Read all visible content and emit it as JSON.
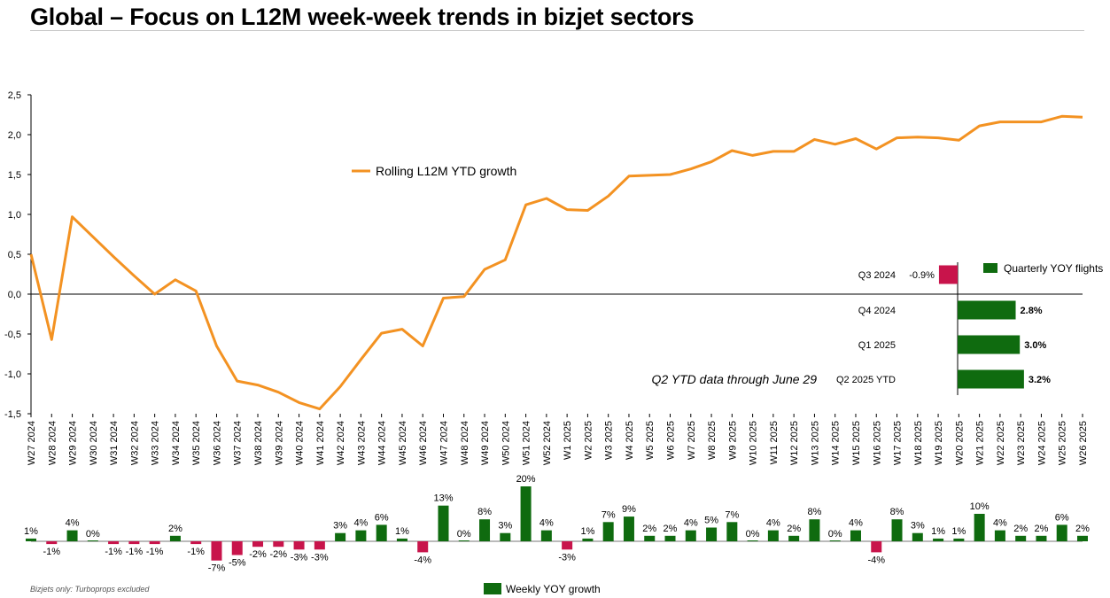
{
  "title": "Global – Focus on L12M week-week trends in bizjet sectors",
  "footnote": "Bizjets only: Turboprops excluded",
  "colors": {
    "line": "#F39222",
    "positive": "#0F6B0F",
    "negative": "#C8144B",
    "axis": "#000000"
  },
  "chart_data": [
    {
      "type": "line",
      "series": [
        {
          "name": "Rolling L12M YTD growth",
          "values": [
            0.5,
            -0.57,
            0.97,
            0.72,
            0.47,
            0.23,
            0.0,
            0.18,
            0.04,
            -0.65,
            -1.09,
            -1.14,
            -1.23,
            -1.36,
            -1.44,
            -1.16,
            -0.82,
            -0.49,
            -0.44,
            -0.65,
            -0.05,
            -0.03,
            0.31,
            0.43,
            1.12,
            1.2,
            1.06,
            1.05,
            1.23,
            1.48,
            1.49,
            1.5,
            1.57,
            1.66,
            1.8,
            1.74,
            1.79,
            1.79,
            1.94,
            1.88,
            1.95,
            1.82,
            1.96,
            1.97,
            1.96,
            1.93,
            2.11,
            2.16,
            2.16,
            2.16,
            2.23,
            2.22
          ]
        }
      ],
      "categories": [
        "W27 2024",
        "W28 2024",
        "W29 2024",
        "W30 2024",
        "W31 2024",
        "W32 2024",
        "W33 2024",
        "W34 2024",
        "W35 2024",
        "W36 2024",
        "W37 2024",
        "W38 2024",
        "W39 2024",
        "W40 2024",
        "W41 2024",
        "W42 2024",
        "W43 2024",
        "W44 2024",
        "W45 2024",
        "W46 2024",
        "W47 2024",
        "W48 2024",
        "W49 2024",
        "W50 2024",
        "W51 2024",
        "W52 2024",
        "W1 2025",
        "W2 2025",
        "W3 2025",
        "W4 2025",
        "W5 2025",
        "W6 2025",
        "W7 2025",
        "W8 2025",
        "W9 2025",
        "W10 2025",
        "W11 2025",
        "W12 2025",
        "W13 2025",
        "W14 2025",
        "W15 2025",
        "W16 2025",
        "W17 2025",
        "W18 2025",
        "W19 2025",
        "W20 2025",
        "W21 2025",
        "W22 2025",
        "W23 2025",
        "W24 2025",
        "W25 2025",
        "W26 2025"
      ],
      "yticks": [
        "2,5",
        "2,0",
        "1,5",
        "1,0",
        "0,5",
        "0,0",
        "-0,5",
        "-1,0",
        "-1,5"
      ],
      "ylim": [
        -1.5,
        2.5
      ],
      "legend": "Rolling L12M YTD growth",
      "legend_position": "top-center"
    },
    {
      "type": "bar",
      "series": [
        {
          "name": "Weekly YOY growth",
          "values": [
            1,
            -1,
            4,
            0,
            -1,
            -1,
            -1,
            2,
            -1,
            -7,
            -5,
            -2,
            -2,
            -3,
            -3,
            3,
            4,
            6,
            1,
            -4,
            13,
            0,
            8,
            3,
            20,
            4,
            -3,
            1,
            7,
            9,
            2,
            2,
            4,
            5,
            7,
            0,
            4,
            2,
            8,
            0,
            4,
            -4,
            8,
            3,
            1,
            1,
            10,
            4,
            2,
            2,
            6,
            2
          ],
          "labels": [
            "1%",
            "-1%",
            "4%",
            "0%",
            "-1%",
            "-1%",
            "-1%",
            "2%",
            "-1%",
            "-7%",
            "-5%",
            "-2%",
            "-2%",
            "-3%",
            "-3%",
            "3%",
            "4%",
            "6%",
            "1%",
            "-4%",
            "13%",
            "0%",
            "8%",
            "3%",
            "20%",
            "4%",
            "-3%",
            "1%",
            "7%",
            "9%",
            "2%",
            "2%",
            "4%",
            "5%",
            "7%",
            "0%",
            "4%",
            "2%",
            "8%",
            "0%",
            "4%",
            "-4%",
            "8%",
            "3%",
            "1%",
            "1%",
            "10%",
            "4%",
            "2%",
            "2%",
            "6%",
            "2%"
          ]
        }
      ],
      "legend": "Weekly YOY growth",
      "legend_position": "bottom-center"
    },
    {
      "type": "bar",
      "orientation": "horizontal",
      "categories": [
        "Q3 2024",
        "Q4 2024",
        "Q1 2025",
        "Q2 2025 YTD"
      ],
      "values": [
        -0.9,
        2.8,
        3.0,
        3.2
      ],
      "labels": [
        "-0.9%",
        "2.8%",
        "3.0%",
        "3.2%"
      ],
      "legend": "Quarterly YOY flights",
      "legend_position": "top-right",
      "note": "Q2 YTD data through June 29"
    }
  ]
}
